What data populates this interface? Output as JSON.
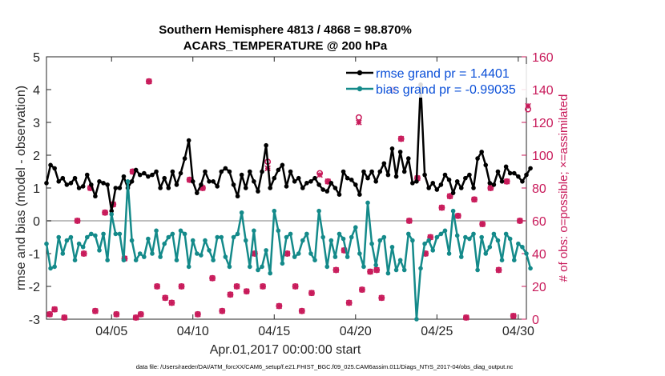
{
  "chart_data": {
    "type": "line",
    "title": "Southern Hemisphere 4813 / 4868 = 98.870%",
    "subtitle": "ACARS_TEMPERATURE @ 200 hPa",
    "xlabel": "Apr.01,2017 00:00:00 start",
    "ylabel": "rmse and bias (model - observation)",
    "ylabel_right": "# of obs: o=possible; ×=assimilated",
    "footnote": "data file: /Users/raeder/DAI/ATM_forcXX/CAM6_setup/f.e21.FHIST_BGC.f09_025.CAM6assim.011/Diags_NTrS_2017-04/obs_diag_output.nc",
    "x_range": [
      "Apr.01,2017 00:00",
      "Apr.30,2017 12:00"
    ],
    "ylim": [
      -3,
      5
    ],
    "ylim_right": [
      0,
      160
    ],
    "x_tick_labels": [
      "04/05",
      "04/10",
      "04/15",
      "04/20",
      "04/25",
      "04/30"
    ],
    "y_tick_labels": [
      "-3",
      "-2",
      "-1",
      "0",
      "1",
      "2",
      "3",
      "4",
      "5"
    ],
    "y_right_tick_labels": [
      "0",
      "20",
      "40",
      "60",
      "80",
      "100",
      "120",
      "140",
      "160"
    ],
    "zero_line": true,
    "grid": false,
    "legend_position": "top-right",
    "legend": [
      "rmse grand pr = 1.4401",
      "bias grand pr = -0.99035"
    ],
    "colors": {
      "rmse": "#000000",
      "bias": "#148a8a",
      "obs": "#c81a5a",
      "legend_text": "#0a4fd8",
      "zero_line": "#bfbfbf"
    },
    "x_days": [
      1.0,
      1.25,
      1.5,
      1.75,
      2.0,
      2.25,
      2.5,
      2.75,
      3.0,
      3.25,
      3.5,
      3.75,
      4.0,
      4.25,
      4.5,
      4.75,
      5.0,
      5.25,
      5.5,
      5.75,
      6.0,
      6.25,
      6.5,
      6.75,
      7.0,
      7.25,
      7.5,
      7.75,
      8.0,
      8.25,
      8.5,
      8.75,
      9.0,
      9.25,
      9.5,
      9.75,
      10.0,
      10.25,
      10.5,
      10.75,
      11.0,
      11.25,
      11.5,
      11.75,
      12.0,
      12.25,
      12.5,
      12.75,
      13.0,
      13.25,
      13.5,
      13.75,
      14.0,
      14.25,
      14.5,
      14.75,
      15.0,
      15.25,
      15.5,
      15.75,
      16.0,
      16.25,
      16.5,
      16.75,
      17.0,
      17.25,
      17.5,
      17.75,
      18.0,
      18.25,
      18.5,
      18.75,
      19.0,
      19.25,
      19.5,
      19.75,
      20.0,
      20.25,
      20.5,
      20.75,
      21.0,
      21.25,
      21.5,
      21.75,
      22.0,
      22.25,
      22.5,
      22.75,
      23.0,
      23.25,
      23.5,
      23.75,
      24.0,
      24.25,
      24.5,
      24.75,
      25.0,
      25.25,
      25.5,
      25.75,
      26.0,
      26.25,
      26.5,
      26.75,
      27.0,
      27.25,
      27.5,
      27.75,
      28.0,
      28.25,
      28.5,
      28.75,
      29.0,
      29.25,
      29.5,
      29.75,
      30.0,
      30.25,
      30.5,
      30.75
    ],
    "series": [
      {
        "name": "rmse grand pr = 1.4401",
        "values": [
          1.15,
          1.7,
          1.6,
          1.2,
          1.3,
          1.1,
          1.15,
          1.3,
          1.0,
          1.05,
          1.4,
          1.1,
          0.75,
          1.2,
          1.15,
          1.1,
          0.3,
          1.0,
          1.0,
          1.35,
          1.0,
          1.2,
          1.55,
          1.4,
          1.45,
          1.35,
          1.4,
          1.5,
          1.0,
          1.3,
          1.0,
          1.5,
          1.1,
          1.45,
          1.9,
          2.45,
          1.2,
          0.85,
          1.1,
          1.5,
          1.2,
          1.2,
          1.05,
          1.5,
          1.6,
          1.5,
          1.1,
          0.75,
          1.4,
          1.0,
          1.5,
          1.2,
          0.9,
          1.5,
          2.3,
          1.0,
          1.3,
          1.55,
          1.7,
          1.05,
          1.5,
          1.2,
          1.3,
          1.0,
          1.15,
          1.2,
          1.3,
          1.1,
          0.95,
          0.9,
          1.15,
          1.0,
          0.8,
          1.5,
          1.3,
          1.25,
          1.1,
          0.8,
          1.5,
          1.3,
          1.5,
          1.2,
          1.5,
          1.75,
          1.4,
          2.2,
          1.35,
          2.1,
          1.5,
          1.9,
          1.15,
          1.2,
          4.15,
          1.4,
          1.0,
          1.15,
          0.95,
          1.1,
          1.4,
          1.25,
          0.85,
          1.2,
          1.0,
          1.3,
          1.4,
          1.0,
          1.9,
          2.1,
          1.7,
          1.15,
          1.1,
          1.5,
          1.2,
          1.65,
          1.45,
          1.45,
          1.35,
          1.2,
          1.4,
          1.6
        ]
      },
      {
        "name": "bias grand pr = -0.99035",
        "values": [
          -0.7,
          -1.45,
          -1.4,
          -0.5,
          -1.0,
          -0.6,
          -0.5,
          -1.2,
          -0.7,
          -0.8,
          -0.5,
          -0.4,
          -0.45,
          -0.9,
          -0.4,
          -1.2,
          0.2,
          -0.4,
          -0.4,
          -1.2,
          1.2,
          -0.6,
          -1.2,
          -1.0,
          -1.1,
          -0.55,
          -1.0,
          -0.3,
          -1.1,
          -0.7,
          -0.5,
          -0.4,
          -1.2,
          -0.3,
          -0.4,
          -1.4,
          -0.6,
          -1.0,
          -1.05,
          -0.6,
          -0.9,
          -1.2,
          -0.5,
          -0.5,
          -1.1,
          -1.4,
          -0.5,
          -0.4,
          0.25,
          -0.6,
          -1.4,
          -0.3,
          -1.5,
          -1.4,
          -0.9,
          -1.6,
          0.3,
          -0.3,
          -1.3,
          -0.5,
          -0.4,
          -1.1,
          -1.0,
          -0.6,
          -0.4,
          -1.0,
          -1.2,
          0.3,
          -0.5,
          -1.4,
          -0.6,
          -1.1,
          -0.4,
          -0.55,
          -1.1,
          -0.5,
          -0.2,
          -1.0,
          -1.4,
          0.55,
          -0.7,
          -1.35,
          -0.6,
          -0.5,
          -1.6,
          -0.8,
          -1.5,
          -1.2,
          -1.5,
          -0.4,
          -0.6,
          -3.0,
          -1.45,
          -0.7,
          -0.6,
          -0.9,
          -0.5,
          -0.4,
          -0.3,
          -1.0,
          0.3,
          -0.45,
          -1.1,
          -0.5,
          -0.55,
          -0.4,
          -1.5,
          -0.5,
          -1.0,
          -0.8,
          -0.4,
          -0.6,
          -1.2,
          -0.4,
          -0.55,
          -1.2,
          -0.7,
          -0.8,
          -1.0,
          -1.45
        ]
      }
    ],
    "obs_possible": {
      "x_days": [
        1.2,
        1.5,
        2.1,
        2.9,
        3.3,
        3.7,
        4.0,
        4.6,
        5.1,
        5.3,
        5.8,
        6.3,
        6.5,
        6.8,
        7.3,
        7.8,
        8.3,
        8.7,
        9.3,
        9.8,
        10.3,
        10.6,
        11.2,
        11.8,
        12.3,
        12.7,
        13.3,
        13.8,
        14.3,
        14.6,
        15.3,
        15.8,
        16.3,
        16.7,
        17.3,
        17.8,
        18.3,
        18.8,
        19.3,
        19.6,
        20.2,
        20.4,
        20.9,
        21.3,
        21.6,
        22.3,
        22.8,
        23.3,
        23.8,
        24.3,
        24.6,
        25.3,
        25.8,
        26.3,
        26.8,
        27.3,
        27.8,
        28.3,
        28.8,
        29.3,
        29.7,
        30.1,
        30.6
      ],
      "values": [
        3,
        6,
        1,
        60,
        40,
        80,
        5,
        65,
        70,
        3,
        37,
        90,
        1,
        3,
        145,
        20,
        13,
        10,
        20,
        85,
        3,
        80,
        25,
        5,
        15,
        20,
        17,
        40,
        20,
        96,
        8,
        40,
        20,
        5,
        16,
        89,
        84,
        30,
        42,
        10,
        123,
        18,
        29,
        30,
        13,
        140,
        110,
        60,
        86,
        40,
        50,
        68,
        75,
        63,
        1,
        73,
        58,
        80,
        30,
        84,
        2,
        60,
        128
      ]
    },
    "obs_assimilated": {
      "x_days": [
        1.2,
        1.5,
        2.1,
        2.9,
        3.3,
        3.7,
        4.0,
        4.6,
        5.1,
        5.3,
        5.8,
        6.3,
        6.5,
        6.8,
        7.3,
        7.8,
        8.3,
        8.7,
        9.3,
        9.8,
        10.3,
        10.6,
        11.2,
        11.8,
        12.3,
        12.7,
        13.3,
        13.8,
        14.3,
        14.6,
        15.3,
        15.8,
        16.3,
        16.7,
        17.3,
        17.8,
        18.3,
        18.8,
        19.3,
        19.6,
        20.2,
        20.4,
        20.9,
        21.3,
        21.6,
        22.3,
        22.8,
        23.3,
        23.8,
        24.3,
        24.6,
        25.3,
        25.8,
        26.3,
        26.8,
        27.3,
        27.8,
        28.3,
        28.8,
        29.3,
        29.7,
        30.1,
        30.6
      ],
      "values": [
        3,
        6,
        1,
        60,
        40,
        80,
        5,
        65,
        70,
        3,
        37,
        90,
        1,
        3,
        145,
        20,
        13,
        10,
        20,
        85,
        3,
        80,
        25,
        5,
        15,
        20,
        17,
        40,
        20,
        92,
        8,
        40,
        20,
        5,
        16,
        88,
        84,
        30,
        42,
        10,
        120,
        18,
        29,
        30,
        13,
        140,
        110,
        60,
        86,
        40,
        50,
        68,
        75,
        63,
        1,
        73,
        58,
        80,
        30,
        84,
        2,
        60,
        130
      ]
    }
  }
}
